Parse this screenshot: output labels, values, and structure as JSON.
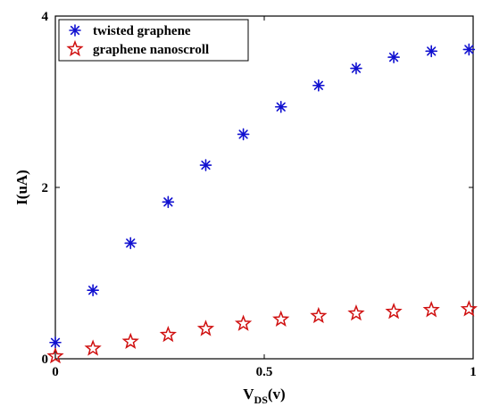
{
  "chart_data": {
    "type": "scatter",
    "xlabel": {
      "main": "V",
      "sub": "DS",
      "suffix": "(v)"
    },
    "ylabel": "I(uA)",
    "xlim": [
      0,
      1
    ],
    "ylim": [
      0,
      4
    ],
    "xticks": [
      0,
      0.5,
      1
    ],
    "xtick_labels": [
      "0",
      "0.5",
      "1"
    ],
    "yticks": [
      0,
      2,
      4
    ],
    "ytick_labels": [
      "0",
      "2",
      "4"
    ],
    "grid": false,
    "legend_position": "top-left",
    "series": [
      {
        "name": "twisted graphene",
        "marker": "asterisk",
        "color": "#1010d0",
        "x": [
          0,
          0.09,
          0.18,
          0.27,
          0.36,
          0.45,
          0.54,
          0.63,
          0.72,
          0.81,
          0.9,
          0.99
        ],
        "y": [
          0.19,
          0.8,
          1.35,
          1.83,
          2.26,
          2.62,
          2.94,
          3.19,
          3.39,
          3.52,
          3.59,
          3.61
        ]
      },
      {
        "name": "graphene nanoscroll",
        "marker": "star",
        "color": "#d01010",
        "x": [
          0,
          0.09,
          0.18,
          0.27,
          0.36,
          0.45,
          0.54,
          0.63,
          0.72,
          0.81,
          0.9,
          0.99
        ],
        "y": [
          0.03,
          0.12,
          0.2,
          0.28,
          0.35,
          0.41,
          0.46,
          0.5,
          0.53,
          0.55,
          0.57,
          0.58
        ]
      }
    ]
  }
}
